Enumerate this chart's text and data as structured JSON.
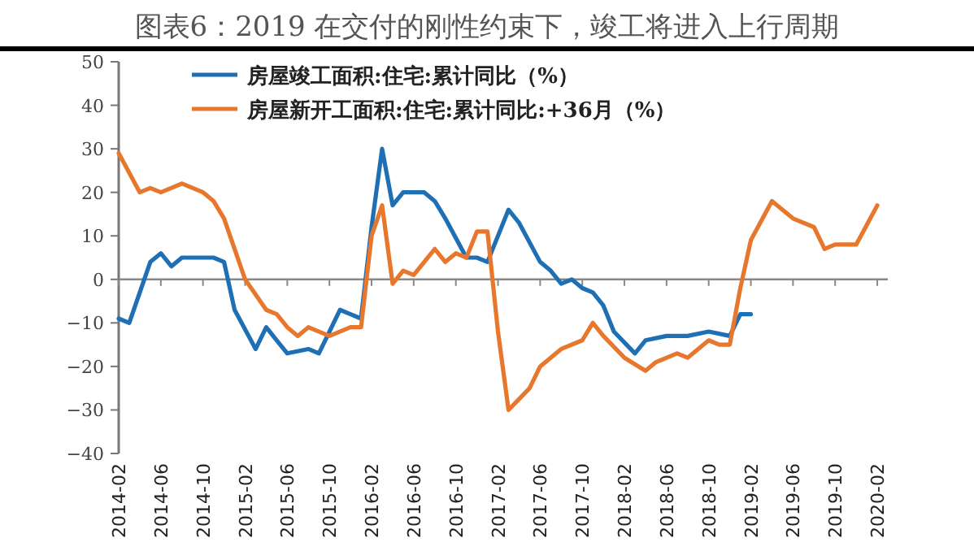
{
  "chart_data": {
    "type": "line",
    "title": "图表6：2019 在交付的刚性约束下，竣工将进入上行周期",
    "series": [
      {
        "name": "房屋竣工面积:住宅:累计同比（%）",
        "color": "#1f6fb4",
        "x": [
          "2014-02",
          "2014-03",
          "2014-04",
          "2014-05",
          "2014-06",
          "2014-07",
          "2014-08",
          "2014-11",
          "2014-12",
          "2015-01",
          "2015-03",
          "2015-04",
          "2015-05",
          "2015-06",
          "2015-08",
          "2015-09",
          "2015-10",
          "2015-11",
          "2015-12",
          "2016-01",
          "2016-02",
          "2016-03",
          "2016-04",
          "2016-05",
          "2016-07",
          "2016-08",
          "2016-09",
          "2016-11",
          "2016-12",
          "2017-01",
          "2017-03",
          "2017-04",
          "2017-06",
          "2017-07",
          "2017-08",
          "2017-09",
          "2017-10",
          "2017-11",
          "2017-12",
          "2018-01",
          "2018-03",
          "2018-04",
          "2018-06",
          "2018-07",
          "2018-08",
          "2018-10",
          "2018-12",
          "2019-01",
          "2019-02"
        ],
        "values": [
          -9,
          -10,
          -3,
          4,
          6,
          3,
          5,
          5,
          4,
          -7,
          -16,
          -11,
          -14,
          -17,
          -16,
          -17,
          -12,
          -7,
          -8,
          -9,
          12,
          30,
          17,
          20,
          20,
          18,
          14,
          5,
          5,
          4,
          16,
          13,
          4,
          2,
          -1,
          0,
          -2,
          -3,
          -6,
          -12,
          -17,
          -14,
          -13,
          -13,
          -13,
          -12,
          -13,
          -8,
          -8
        ]
      },
      {
        "name": "房屋新开工面积:住宅:累计同比:+36月（%）",
        "color": "#e8772e",
        "x": [
          "2014-02",
          "2014-04",
          "2014-05",
          "2014-06",
          "2014-08",
          "2014-10",
          "2014-11",
          "2014-12",
          "2015-02",
          "2015-04",
          "2015-05",
          "2015-06",
          "2015-07",
          "2015-08",
          "2015-10",
          "2015-12",
          "2016-01",
          "2016-02",
          "2016-03",
          "2016-04",
          "2016-05",
          "2016-06",
          "2016-08",
          "2016-09",
          "2016-10",
          "2016-11",
          "2016-12",
          "2017-01",
          "2017-02",
          "2017-03",
          "2017-05",
          "2017-06",
          "2017-08",
          "2017-10",
          "2017-11",
          "2017-12",
          "2018-02",
          "2018-04",
          "2018-05",
          "2018-07",
          "2018-08",
          "2018-10",
          "2018-11",
          "2018-12",
          "2019-01",
          "2019-02",
          "2019-04",
          "2019-06",
          "2019-08",
          "2019-09",
          "2019-10",
          "2019-12",
          "2020-02"
        ],
        "values": [
          29,
          20,
          21,
          20,
          22,
          20,
          18,
          14,
          0,
          -7,
          -8,
          -11,
          -13,
          -11,
          -13,
          -11,
          -11,
          10,
          17,
          -1,
          2,
          1,
          7,
          4,
          6,
          5,
          11,
          11,
          -12,
          -30,
          -25,
          -20,
          -16,
          -14,
          -10,
          -13,
          -18,
          -21,
          -19,
          -17,
          -18,
          -14,
          -15,
          -15,
          -2,
          9,
          18,
          14,
          12,
          7,
          8,
          8,
          17
        ]
      }
    ],
    "xlim": [
      "2014-02",
      "2020-03"
    ],
    "xticks": [
      "2014-02",
      "2014-06",
      "2014-10",
      "2015-02",
      "2015-06",
      "2015-10",
      "2016-02",
      "2016-06",
      "2016-10",
      "2017-02",
      "2017-06",
      "2017-10",
      "2018-02",
      "2018-06",
      "2018-10",
      "2019-02",
      "2019-06",
      "2019-10",
      "2020-02"
    ],
    "ylim": [
      -40,
      50
    ],
    "yticks": [
      -40,
      -30,
      -20,
      -10,
      0,
      10,
      20,
      30,
      40,
      50
    ],
    "legend": "top left",
    "marker": "none",
    "line_style": "solid"
  }
}
